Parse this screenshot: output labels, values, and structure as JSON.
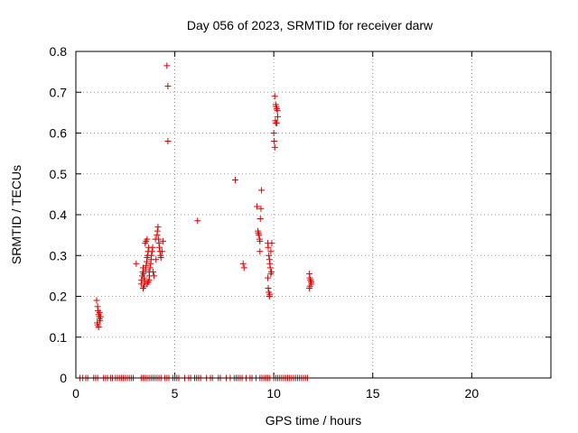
{
  "chart_data": {
    "type": "scatter",
    "title": "Day 056 of 2023, SRMTID for receiver darw",
    "xlabel": "GPS time / hours",
    "ylabel": "SRMTID / TECUs",
    "xlim": [
      0,
      24
    ],
    "ylim": [
      0,
      0.8
    ],
    "x_ticks": [
      0,
      5,
      10,
      15,
      20
    ],
    "y_ticks": [
      0,
      0.1,
      0.2,
      0.3,
      0.4,
      0.5,
      0.6,
      0.7,
      0.8
    ],
    "x_tick_labels": [
      "0",
      "5",
      "10",
      "15",
      "20"
    ],
    "y_tick_labels": [
      "0",
      "0.1",
      "0.2",
      "0.3",
      "0.4",
      "0.5",
      "0.6",
      "0.7",
      "0.8"
    ],
    "grid": true,
    "marker": "plus",
    "marker_color": "#e00000",
    "series": [
      {
        "points": [
          [
            1.05,
            0.19
          ],
          [
            1.1,
            0.175
          ],
          [
            1.12,
            0.165
          ],
          [
            1.15,
            0.155
          ],
          [
            1.18,
            0.15
          ],
          [
            1.2,
            0.145
          ],
          [
            1.22,
            0.14
          ],
          [
            1.08,
            0.135
          ],
          [
            1.1,
            0.13
          ],
          [
            1.15,
            0.125
          ],
          [
            1.25,
            0.15
          ],
          [
            1.2,
            0.16
          ],
          [
            3.05,
            0.28
          ],
          [
            3.3,
            0.23
          ],
          [
            3.32,
            0.24
          ],
          [
            3.35,
            0.25
          ],
          [
            3.38,
            0.26
          ],
          [
            3.4,
            0.27
          ],
          [
            3.42,
            0.255
          ],
          [
            3.45,
            0.245
          ],
          [
            3.5,
            0.235
          ],
          [
            3.52,
            0.265
          ],
          [
            3.55,
            0.275
          ],
          [
            3.58,
            0.285
          ],
          [
            3.6,
            0.295
          ],
          [
            3.62,
            0.3
          ],
          [
            3.65,
            0.31
          ],
          [
            3.68,
            0.32
          ],
          [
            3.5,
            0.33
          ],
          [
            3.55,
            0.335
          ],
          [
            3.6,
            0.34
          ],
          [
            3.7,
            0.26
          ],
          [
            3.72,
            0.25
          ],
          [
            3.75,
            0.27
          ],
          [
            3.78,
            0.28
          ],
          [
            3.8,
            0.29
          ],
          [
            3.82,
            0.3
          ],
          [
            3.85,
            0.31
          ],
          [
            3.88,
            0.32
          ],
          [
            3.4,
            0.22
          ],
          [
            3.45,
            0.225
          ],
          [
            3.6,
            0.23
          ],
          [
            3.65,
            0.235
          ],
          [
            3.7,
            0.24
          ],
          [
            3.9,
            0.26
          ],
          [
            3.95,
            0.25
          ],
          [
            4.1,
            0.35
          ],
          [
            4.12,
            0.36
          ],
          [
            4.15,
            0.37
          ],
          [
            4.18,
            0.34
          ],
          [
            4.2,
            0.33
          ],
          [
            4.22,
            0.32
          ],
          [
            4.25,
            0.31
          ],
          [
            4.28,
            0.3
          ],
          [
            4.3,
            0.295
          ],
          [
            4.35,
            0.31
          ],
          [
            4.05,
            0.29
          ],
          [
            4.4,
            0.335
          ],
          [
            4.02,
            0.34
          ],
          [
            4.6,
            0.765
          ],
          [
            4.65,
            0.715
          ],
          [
            4.65,
            0.58
          ],
          [
            6.15,
            0.385
          ],
          [
            8.05,
            0.485
          ],
          [
            8.45,
            0.28
          ],
          [
            8.5,
            0.27
          ],
          [
            9.15,
            0.42
          ],
          [
            9.2,
            0.36
          ],
          [
            9.22,
            0.355
          ],
          [
            9.25,
            0.35
          ],
          [
            9.28,
            0.34
          ],
          [
            9.3,
            0.335
          ],
          [
            9.32,
            0.39
          ],
          [
            9.35,
            0.415
          ],
          [
            9.38,
            0.46
          ],
          [
            9.3,
            0.31
          ],
          [
            9.7,
            0.33
          ],
          [
            9.72,
            0.32
          ],
          [
            9.75,
            0.3
          ],
          [
            9.78,
            0.29
          ],
          [
            9.8,
            0.28
          ],
          [
            9.82,
            0.27
          ],
          [
            9.85,
            0.255
          ],
          [
            9.7,
            0.245
          ],
          [
            9.72,
            0.22
          ],
          [
            9.75,
            0.21
          ],
          [
            9.78,
            0.2
          ],
          [
            9.8,
            0.205
          ],
          [
            9.9,
            0.33
          ],
          [
            9.85,
            0.31
          ],
          [
            9.88,
            0.26
          ],
          [
            10.05,
            0.69
          ],
          [
            10.1,
            0.67
          ],
          [
            10.12,
            0.665
          ],
          [
            10.15,
            0.66
          ],
          [
            10.18,
            0.655
          ],
          [
            10.2,
            0.64
          ],
          [
            10.08,
            0.63
          ],
          [
            10.1,
            0.625
          ],
          [
            10.0,
            0.6
          ],
          [
            10.02,
            0.58
          ],
          [
            10.05,
            0.565
          ],
          [
            10.15,
            0.625
          ],
          [
            11.8,
            0.255
          ],
          [
            11.82,
            0.245
          ],
          [
            11.85,
            0.24
          ],
          [
            11.88,
            0.235
          ],
          [
            11.9,
            0.23
          ],
          [
            11.82,
            0.225
          ],
          [
            11.8,
            0.22
          ],
          [
            0.2,
            0
          ],
          [
            0.35,
            0
          ],
          [
            0.5,
            0
          ],
          [
            0.6,
            0
          ],
          [
            0.9,
            0
          ],
          [
            1.0,
            0
          ],
          [
            1.1,
            0
          ],
          [
            1.4,
            0
          ],
          [
            1.5,
            0
          ],
          [
            1.6,
            0
          ],
          [
            1.75,
            0
          ],
          [
            1.85,
            0
          ],
          [
            2.0,
            0
          ],
          [
            2.1,
            0
          ],
          [
            2.2,
            0
          ],
          [
            2.3,
            0
          ],
          [
            2.4,
            0
          ],
          [
            2.5,
            0
          ],
          [
            2.6,
            0
          ],
          [
            2.7,
            0
          ],
          [
            2.8,
            0
          ],
          [
            2.9,
            0
          ],
          [
            3.3,
            0
          ],
          [
            3.4,
            0
          ],
          [
            3.5,
            0
          ],
          [
            3.6,
            0
          ],
          [
            3.7,
            0
          ],
          [
            3.8,
            0
          ],
          [
            3.9,
            0
          ],
          [
            4.0,
            0
          ],
          [
            4.1,
            0
          ],
          [
            4.2,
            0
          ],
          [
            4.3,
            0
          ],
          [
            4.5,
            0
          ],
          [
            4.6,
            0
          ],
          [
            4.7,
            0
          ],
          [
            4.9,
            0
          ],
          [
            5.0,
            0
          ],
          [
            5.1,
            0
          ],
          [
            5.2,
            0
          ],
          [
            5.5,
            0
          ],
          [
            5.7,
            0
          ],
          [
            5.8,
            0
          ],
          [
            6.0,
            0
          ],
          [
            6.1,
            0
          ],
          [
            6.2,
            0
          ],
          [
            6.3,
            0
          ],
          [
            6.6,
            0
          ],
          [
            6.8,
            0
          ],
          [
            6.9,
            0
          ],
          [
            7.2,
            0
          ],
          [
            7.3,
            0
          ],
          [
            7.6,
            0
          ],
          [
            7.8,
            0
          ],
          [
            8.0,
            0
          ],
          [
            8.1,
            0
          ],
          [
            8.2,
            0
          ],
          [
            8.3,
            0
          ],
          [
            8.4,
            0
          ],
          [
            8.6,
            0
          ],
          [
            8.8,
            0
          ],
          [
            8.9,
            0
          ],
          [
            9.1,
            0
          ],
          [
            9.3,
            0
          ],
          [
            9.4,
            0
          ],
          [
            9.5,
            0
          ],
          [
            9.6,
            0
          ],
          [
            9.7,
            0
          ],
          [
            9.8,
            0
          ],
          [
            10.0,
            0
          ],
          [
            10.1,
            0
          ],
          [
            10.2,
            0
          ],
          [
            10.3,
            0
          ],
          [
            10.4,
            0
          ],
          [
            10.5,
            0
          ],
          [
            10.6,
            0
          ],
          [
            10.7,
            0
          ],
          [
            10.8,
            0
          ],
          [
            10.9,
            0
          ],
          [
            11.0,
            0
          ],
          [
            11.1,
            0
          ],
          [
            11.2,
            0
          ],
          [
            11.3,
            0
          ],
          [
            11.4,
            0
          ],
          [
            11.5,
            0
          ],
          [
            11.6,
            0
          ],
          [
            11.7,
            0
          ]
        ]
      }
    ]
  }
}
